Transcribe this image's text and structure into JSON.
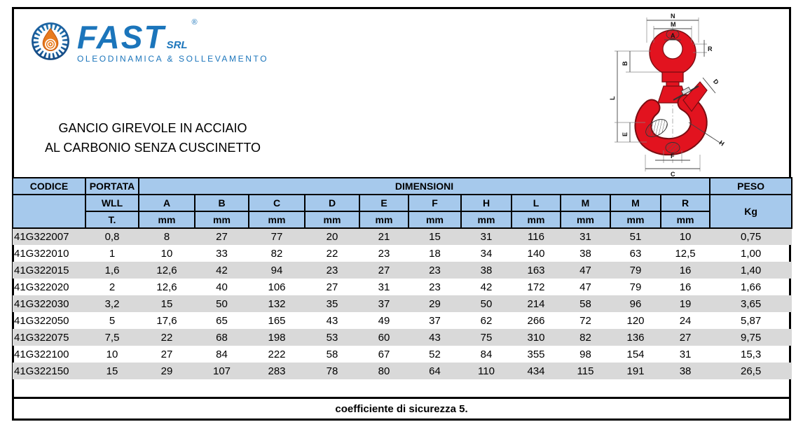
{
  "page": {
    "logo": {
      "brand": "FAST",
      "registered": "®",
      "suffix": "SRL",
      "tagline": "OLEODINAMICA & SOLLEVAMENTO",
      "brand_color": "#1b75bb",
      "drop_color": "#e87b1e"
    },
    "title_line1": "GANCIO GIREVOLE IN ACCIAIO",
    "title_line2": "AL CARBONIO SENZA CUSCINETTO",
    "diagram": {
      "hook_color": "#e2131f",
      "labels": {
        "n": "N",
        "m": "M",
        "a": "A",
        "r": "R",
        "b": "B",
        "l": "L",
        "e": "E",
        "d": "D",
        "h": "H",
        "f": "F",
        "c": "C"
      }
    },
    "footer": "coefficiente di sicurezza 5."
  },
  "table": {
    "header": {
      "codice": "CODICE",
      "portata": "PORTATA",
      "dimensioni": "DIMENSIONI",
      "peso": "PESO",
      "wll": "WLL",
      "t": "T.",
      "kg": "Kg",
      "unit": "mm",
      "dim_cols": [
        "A",
        "B",
        "C",
        "D",
        "E",
        "F",
        "H",
        "L",
        "M",
        "M",
        "R"
      ]
    },
    "colors": {
      "header_bg": "#a6c9ec",
      "row_alt_bg": "#d9d9d9",
      "border": "#000000"
    },
    "rows": [
      {
        "codice": "41G322007",
        "wll": "0,8",
        "dims": [
          "8",
          "27",
          "77",
          "20",
          "21",
          "15",
          "31",
          "116",
          "31",
          "51",
          "10"
        ],
        "kg": "0,75"
      },
      {
        "codice": "41G322010",
        "wll": "1",
        "dims": [
          "10",
          "33",
          "82",
          "22",
          "23",
          "18",
          "34",
          "140",
          "38",
          "63",
          "12,5"
        ],
        "kg": "1,00"
      },
      {
        "codice": "41G322015",
        "wll": "1,6",
        "dims": [
          "12,6",
          "42",
          "94",
          "23",
          "27",
          "23",
          "38",
          "163",
          "47",
          "79",
          "16"
        ],
        "kg": "1,40"
      },
      {
        "codice": "41G322020",
        "wll": "2",
        "dims": [
          "12,6",
          "40",
          "106",
          "27",
          "31",
          "23",
          "42",
          "172",
          "47",
          "79",
          "16"
        ],
        "kg": "1,66"
      },
      {
        "codice": "41G322030",
        "wll": "3,2",
        "dims": [
          "15",
          "50",
          "132",
          "35",
          "37",
          "29",
          "50",
          "214",
          "58",
          "96",
          "19"
        ],
        "kg": "3,65"
      },
      {
        "codice": "41G322050",
        "wll": "5",
        "dims": [
          "17,6",
          "65",
          "165",
          "43",
          "49",
          "37",
          "62",
          "266",
          "72",
          "120",
          "24"
        ],
        "kg": "5,87"
      },
      {
        "codice": "41G322075",
        "wll": "7,5",
        "dims": [
          "22",
          "68",
          "198",
          "53",
          "60",
          "43",
          "75",
          "310",
          "82",
          "136",
          "27"
        ],
        "kg": "9,75"
      },
      {
        "codice": "41G322100",
        "wll": "10",
        "dims": [
          "27",
          "84",
          "222",
          "58",
          "67",
          "52",
          "84",
          "355",
          "98",
          "154",
          "31"
        ],
        "kg": "15,3"
      },
      {
        "codice": "41G322150",
        "wll": "15",
        "dims": [
          "29",
          "107",
          "283",
          "78",
          "80",
          "64",
          "110",
          "434",
          "115",
          "191",
          "38"
        ],
        "kg": "26,5"
      }
    ]
  }
}
